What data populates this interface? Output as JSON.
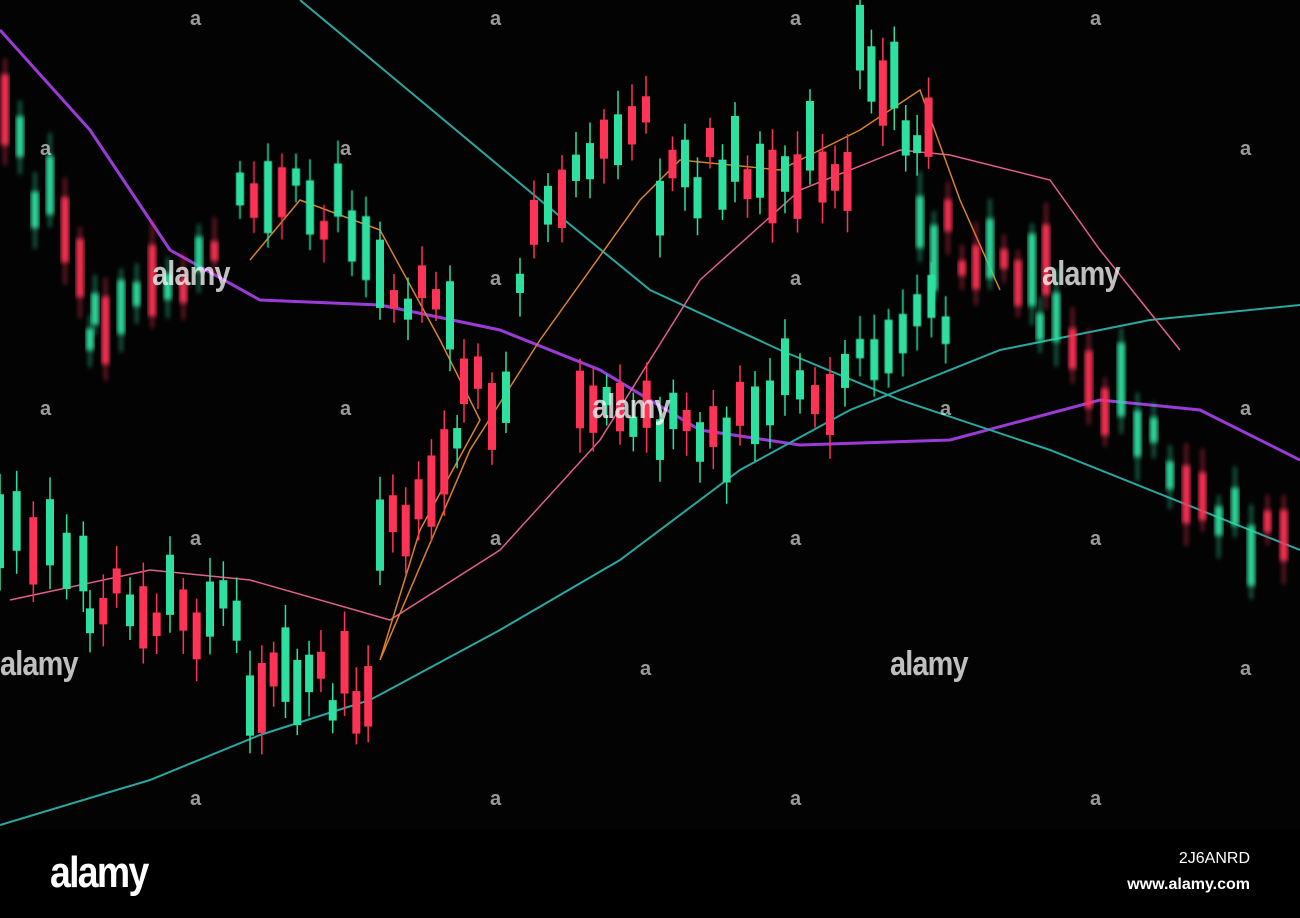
{
  "image": {
    "subject": "candlestick-chart-photo",
    "colors": {
      "up": "#2de0a0",
      "down": "#ff3355",
      "ma_purple": "#9a3bd6",
      "ma_orange": "#d9822b",
      "ma_teal": "#2aa7a0",
      "ma_pink": "#e0608a"
    }
  },
  "watermark": {
    "text": "alamy",
    "mark": "a"
  },
  "footer": {
    "logo": "alamy",
    "image_id": "2J6ANRD",
    "url": "www.alamy.com"
  }
}
